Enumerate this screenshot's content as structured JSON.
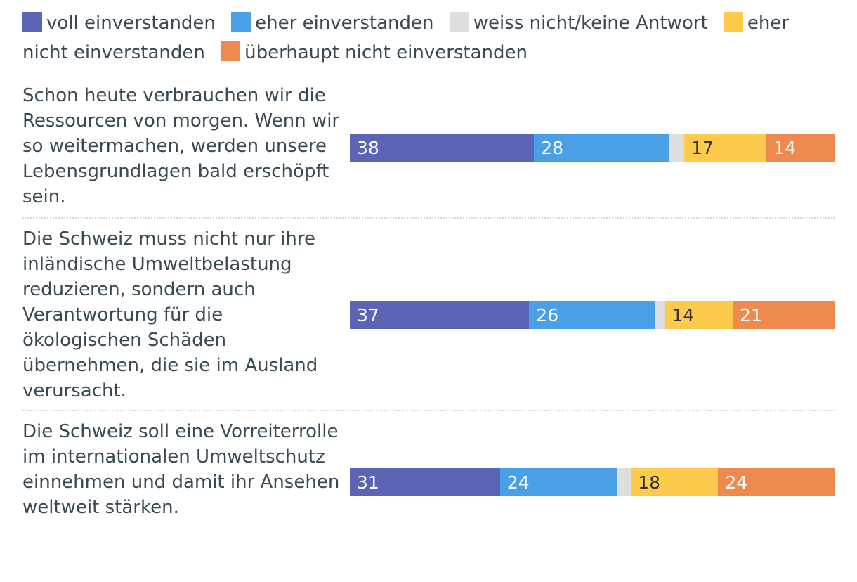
{
  "legend": [
    {
      "label": "voll einverstanden",
      "color": "#5b64b5"
    },
    {
      "label": "eher einverstanden",
      "color": "#4aa0e6"
    },
    {
      "label": "weiss nicht/keine Antwort",
      "color": "#dedede"
    },
    {
      "label": "eher nicht einverstanden",
      "color": "#fccb4e"
    },
    {
      "label": "überhaupt nicht einverstanden",
      "color": "#ee8a4e"
    }
  ],
  "chart_data": {
    "type": "bar",
    "orientation": "horizontal",
    "stacked": true,
    "xlim": [
      0,
      100
    ],
    "categories": [
      "Schon heute verbrauchen wir die Ressourcen von morgen. Wenn wir so weitermachen, werden unsere Lebensgrundlagen bald erschöpft sein.",
      "Die Schweiz muss nicht nur ihre inländische Umweltbelastung reduzieren, sondern auch Verantwortung für die ökologischen Schäden übernehmen, die sie im Ausland verursacht.",
      "Die Schweiz soll eine Vorreiterrolle im internationalen Umweltschutz einnehmen und damit ihr Ansehen weltweit stärken."
    ],
    "series": [
      {
        "name": "voll einverstanden",
        "values": [
          38,
          37,
          31
        ],
        "labels": [
          "38",
          "37",
          "31"
        ],
        "color": "#5b64b5",
        "text_color": "#ffffff"
      },
      {
        "name": "eher einverstanden",
        "values": [
          28,
          26,
          24
        ],
        "labels": [
          "28",
          "26",
          "24"
        ],
        "color": "#4aa0e6",
        "text_color": "#ffffff"
      },
      {
        "name": "weiss nicht/keine Antwort",
        "values": [
          3,
          2,
          3
        ],
        "labels": [
          "",
          "",
          ""
        ],
        "color": "#dedede",
        "text_color": "#333333"
      },
      {
        "name": "eher nicht einverstanden",
        "values": [
          17,
          14,
          18
        ],
        "labels": [
          "17",
          "14",
          "18"
        ],
        "color": "#fccb4e",
        "text_color": "#333333"
      },
      {
        "name": "überhaupt nicht einverstanden",
        "values": [
          14,
          21,
          24
        ],
        "labels": [
          "14",
          "21",
          "24"
        ],
        "color": "#ee8a4e",
        "text_color": "#ffffff"
      }
    ]
  }
}
